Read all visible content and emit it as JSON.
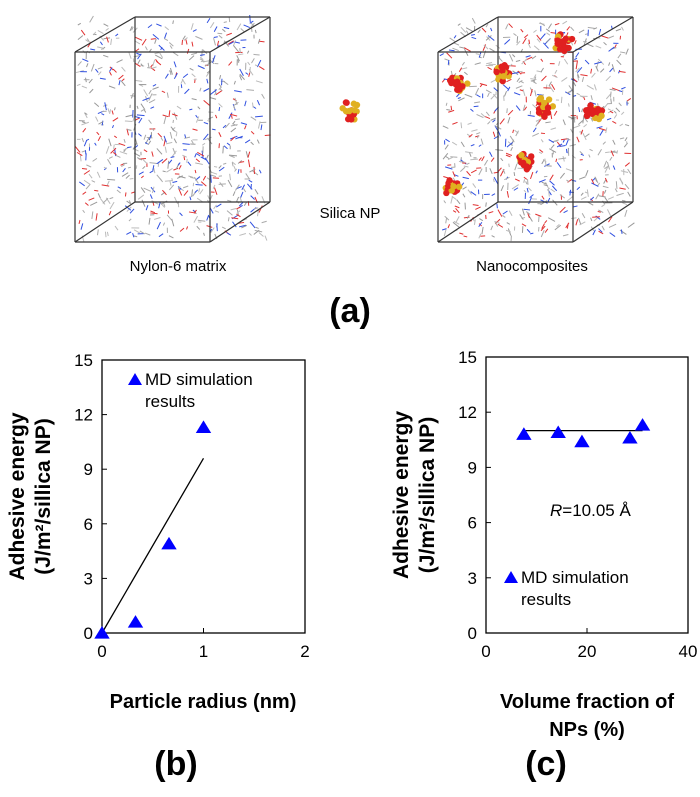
{
  "figure_a": {
    "left_label": "Nylon-6 matrix",
    "middle_label": "Silica NP",
    "right_label": "Nanocomposites",
    "panel_label": "(a)"
  },
  "chart_data": [
    {
      "type": "scatter",
      "panel_label": "(b)",
      "xlabel": "Particle radius (nm)",
      "ylabel_line1": "Adhesive energy",
      "ylabel_line2": "(J/m²/sillica NP)",
      "xlim": [
        0,
        2
      ],
      "ylim": [
        0,
        15
      ],
      "xticks": [
        "0",
        "1",
        "2"
      ],
      "yticks": [
        "0",
        "3",
        "6",
        "9",
        "12",
        "15"
      ],
      "legend": {
        "line1": "MD simulation",
        "line2": "results",
        "position": "top-left"
      },
      "series": [
        {
          "name": "MD simulation results",
          "marker": "triangle",
          "color": "#0000ff",
          "x": [
            0,
            0.33,
            0.66,
            1.0
          ],
          "y": [
            0,
            0.6,
            4.9,
            11.3
          ]
        }
      ],
      "fit_line": {
        "x": [
          0,
          1.0
        ],
        "y": [
          0,
          9.6
        ],
        "color": "#000000"
      }
    },
    {
      "type": "scatter",
      "panel_label": "(c)",
      "xlabel_line1": "Volume fraction of",
      "xlabel_line2": "NPs (%)",
      "ylabel_line1": "Adhesive energy",
      "ylabel_line2": "(J/m²/sillica NP)",
      "xlim": [
        0,
        40
      ],
      "ylim": [
        0,
        15
      ],
      "xticks": [
        "0",
        "20",
        "40"
      ],
      "yticks": [
        "0",
        "3",
        "6",
        "9",
        "12",
        "15"
      ],
      "annotation": "=10.05 Å",
      "annotation_var": "R",
      "legend": {
        "line1": "MD simulation",
        "line2": "results",
        "position": "bottom-left"
      },
      "series": [
        {
          "name": "MD simulation results",
          "marker": "triangle",
          "color": "#0000ff",
          "x": [
            7.5,
            14.3,
            19,
            28.5,
            31
          ],
          "y": [
            10.8,
            10.9,
            10.4,
            10.6,
            11.3
          ]
        }
      ],
      "fit_line": {
        "x": [
          7.5,
          31
        ],
        "y": [
          11.0,
          11.0
        ],
        "color": "#000000"
      }
    }
  ]
}
